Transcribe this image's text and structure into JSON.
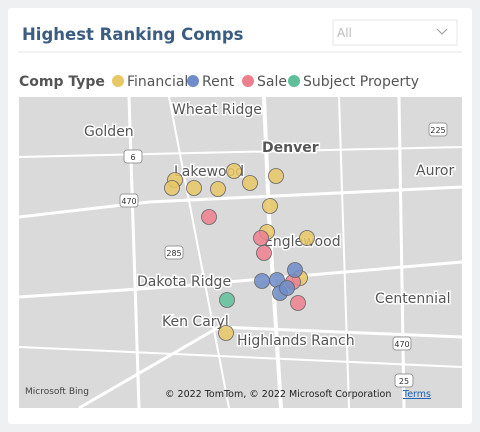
{
  "header": {
    "title": "Highest Ranking Comps",
    "filter": "All"
  },
  "legend": {
    "title": "Comp Type",
    "items": [
      {
        "name": "Financial",
        "color": "#e8c766"
      },
      {
        "name": "Rent",
        "color": "#6f8cc9"
      },
      {
        "name": "Sale",
        "color": "#ee7f8e"
      },
      {
        "name": "Subject Property",
        "color": "#5fbf9b"
      }
    ]
  },
  "map": {
    "places": [
      "Wheat Ridge",
      "Golden",
      "Denver",
      "Auror",
      "Lakewood",
      "Englewood",
      "Dakota Ridge",
      "Centennial",
      "Ken Caryl",
      "Highlands Ranch"
    ],
    "shields": [
      "225",
      "6",
      "470",
      "285",
      "470",
      "25"
    ],
    "attribution": "© 2022 TomTom, © 2022 Microsoft Corporation",
    "terms": "Terms",
    "brand": "Microsoft Bing"
  }
}
